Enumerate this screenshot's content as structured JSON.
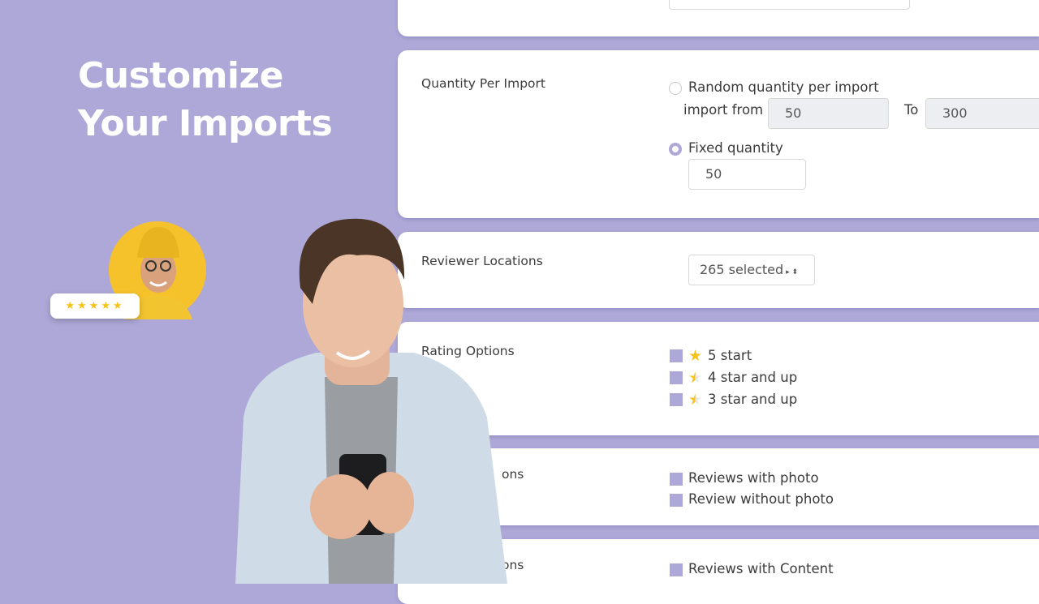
{
  "headline": {
    "line1": "Customize",
    "line2": "Your Imports"
  },
  "testimonial": {
    "rating_stars": "★★★★★",
    "rating": 5
  },
  "quantity": {
    "label": "Quantity Per Import",
    "random_label": "Random quantity per import",
    "import_from_label": "import from",
    "from_value": "50",
    "to_label": "To",
    "to_value": "300",
    "fixed_label": "Fixed quantity",
    "fixed_value": "50",
    "selected": "fixed"
  },
  "locations": {
    "label": "Reviewer Locations",
    "select_value": "265 selected"
  },
  "rating_options": {
    "label": "Rating Options",
    "items": [
      {
        "label": "5 start",
        "star": "full"
      },
      {
        "label": "4 star and up",
        "star": "half"
      },
      {
        "label": "3 star and up",
        "star": "half"
      }
    ]
  },
  "photo_options": {
    "label_fragment": "ons",
    "items": [
      "Reviews with photo",
      "Review without photo"
    ]
  },
  "content_options": {
    "label_fragment": "ons",
    "items": [
      "Reviews with Content"
    ]
  },
  "colors": {
    "background": "#aea8d8",
    "accent": "#aea8d8",
    "star": "#f7c21a"
  }
}
